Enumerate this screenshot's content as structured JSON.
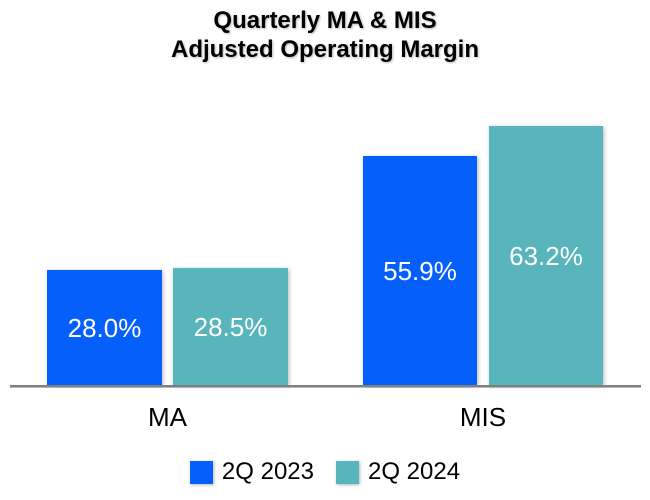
{
  "title": {
    "line1": "Quarterly MA & MIS",
    "line2": "Adjusted Operating Margin"
  },
  "chart_data": {
    "type": "bar",
    "categories": [
      "MA",
      "MIS"
    ],
    "series": [
      {
        "name": "2Q 2023",
        "color": "#0560FB",
        "values": [
          28.0,
          55.9
        ],
        "display_labels": [
          "28.0%",
          "55.9%"
        ]
      },
      {
        "name": "2Q 2024",
        "color": "#59B5BC",
        "values": [
          28.5,
          63.2
        ],
        "display_labels": [
          "28.5%",
          "63.2%"
        ]
      }
    ],
    "value_suffix": "%",
    "ylim": [
      0,
      68
    ],
    "grid": false,
    "legend_position": "bottom",
    "axis_color": "#7F7F7F",
    "value_label_color": "#FFFFFF"
  }
}
